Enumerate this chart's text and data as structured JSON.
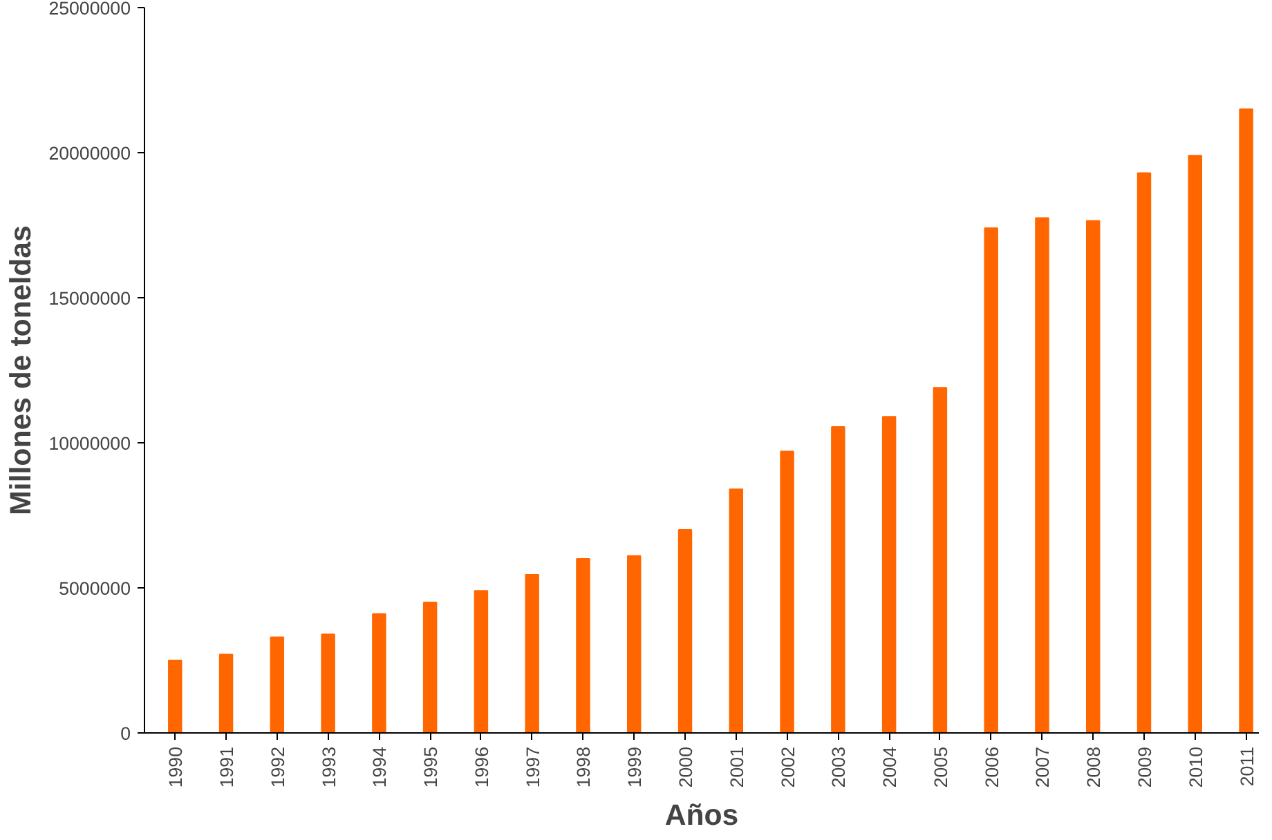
{
  "chart_data": {
    "type": "bar",
    "xlabel": "Años",
    "ylabel": "Millones de toneldas",
    "categories": [
      "1990",
      "1991",
      "1992",
      "1993",
      "1994",
      "1995",
      "1996",
      "1997",
      "1998",
      "1999",
      "2000",
      "2001",
      "2002",
      "2003",
      "2004",
      "2005",
      "2006",
      "2007",
      "2008",
      "2009",
      "2010",
      "2011"
    ],
    "values": [
      2500000,
      2700000,
      3300000,
      3400000,
      4100000,
      4500000,
      4900000,
      5450000,
      6000000,
      6100000,
      7000000,
      8400000,
      9700000,
      10550000,
      10900000,
      11900000,
      17400000,
      17750000,
      17650000,
      19300000,
      19900000,
      21500000
    ],
    "color": "#ff6600",
    "ylim": [
      0,
      25000000
    ],
    "yticks": [
      0,
      5000000,
      10000000,
      15000000,
      20000000,
      25000000
    ],
    "grid": false
  }
}
